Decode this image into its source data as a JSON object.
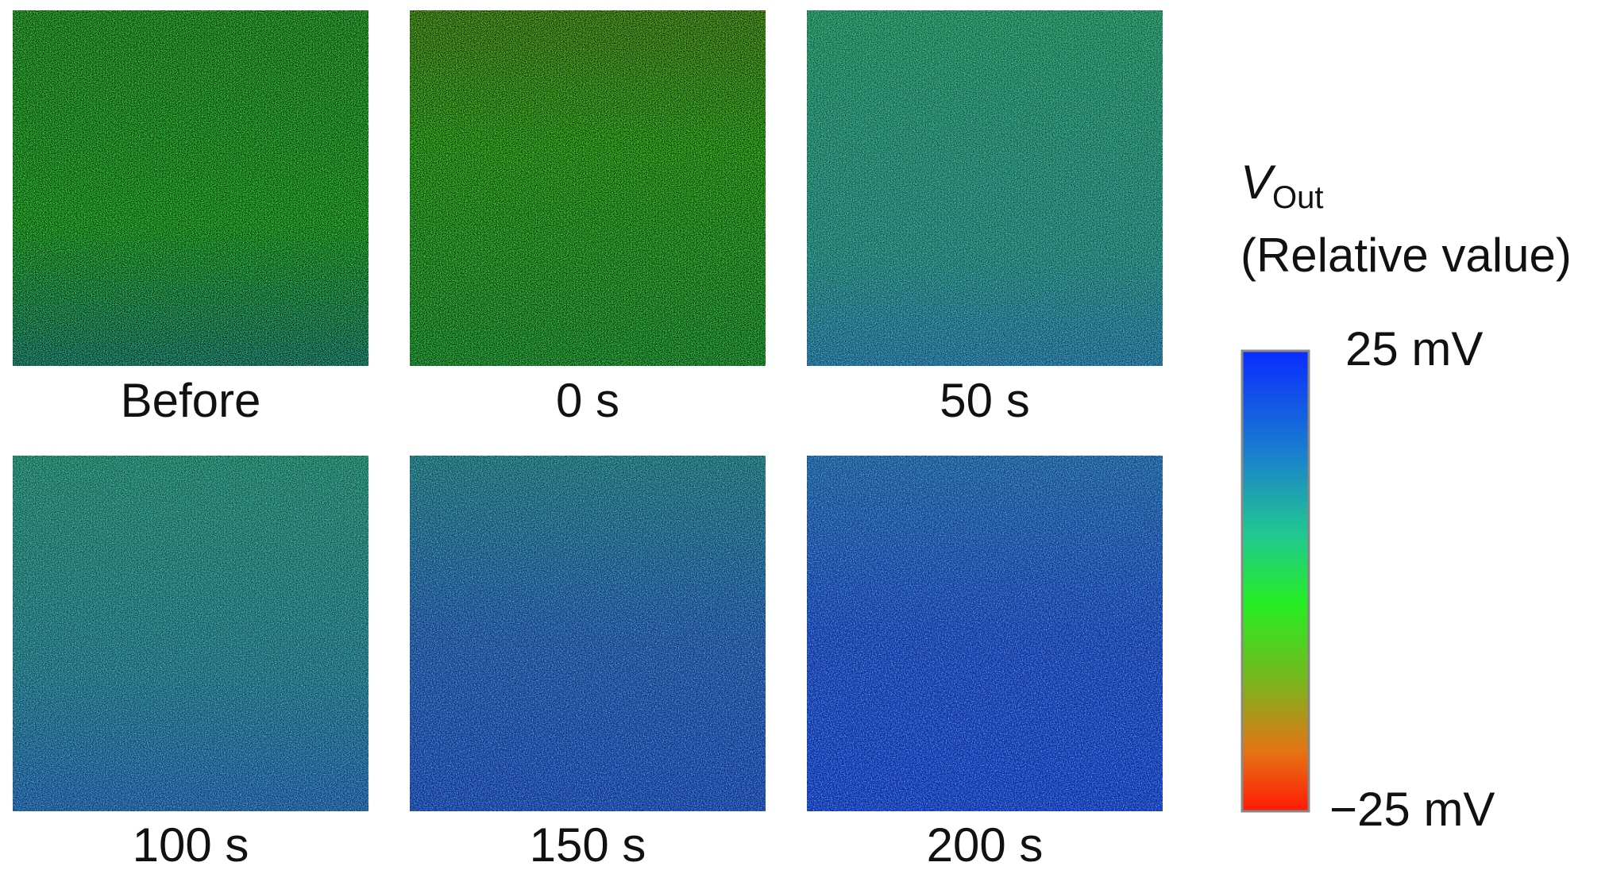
{
  "panels": [
    {
      "label": "Before"
    },
    {
      "label": "0 s"
    },
    {
      "label": "50 s"
    },
    {
      "label": "100 s"
    },
    {
      "label": "150 s"
    },
    {
      "label": "200 s"
    }
  ],
  "colorbar": {
    "symbol": "V",
    "subscript": "Out",
    "subtitle": "(Relative value)",
    "max_label": "25 mV",
    "min_label": "−25 mV"
  }
}
